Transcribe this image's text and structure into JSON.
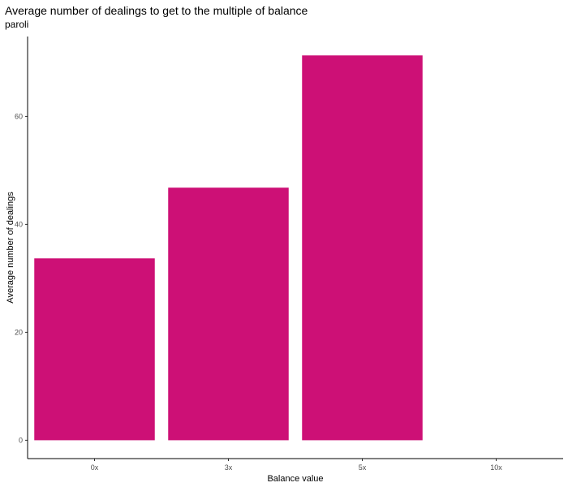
{
  "chart_data": {
    "type": "bar",
    "title": "Average number of dealings to get to the multiple of balance",
    "subtitle": "paroli",
    "xlabel": "Balance value",
    "ylabel": "Average number of dealings",
    "categories": [
      "0x",
      "3x",
      "5x",
      "10x"
    ],
    "values": [
      33.7,
      46.8,
      71.3,
      null
    ],
    "ylim": [
      -3.4,
      74.8
    ],
    "yticks": [
      0,
      20,
      40,
      60
    ],
    "bar_color": "#CD1076",
    "grid": false,
    "legend": "none"
  }
}
